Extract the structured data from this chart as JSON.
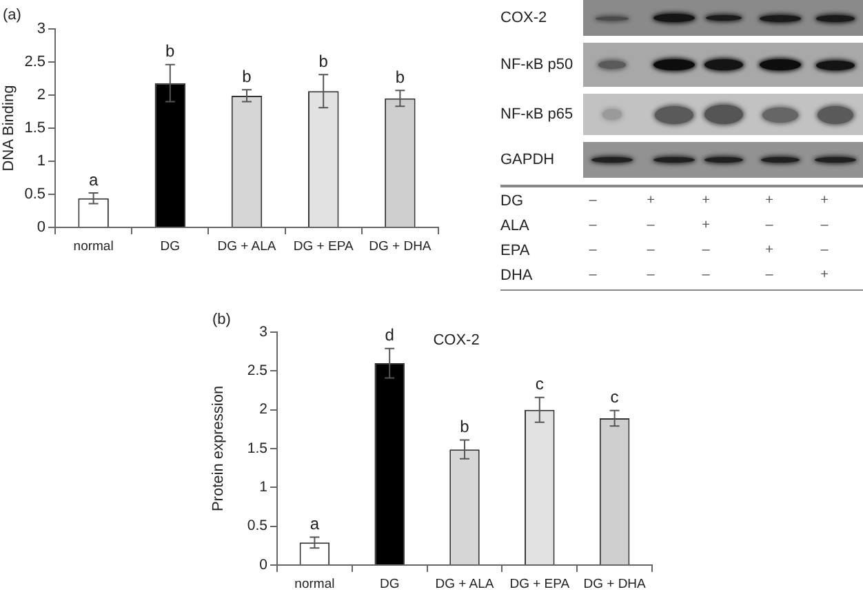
{
  "chart_data": [
    {
      "type": "bar",
      "categories": [
        "normal",
        "DG",
        "DG + ALA",
        "DG + EPA",
        "DG + DHA"
      ],
      "values": [
        0.44,
        2.18,
        1.99,
        2.06,
        1.95
      ],
      "errors": [
        0.08,
        0.28,
        0.09,
        0.25,
        0.12
      ],
      "colors": [
        "#ffffff",
        "#000000",
        "#d6d6d6",
        "#e2e2e2",
        "#cfcfcf"
      ],
      "ylabel": "DNA Binding",
      "ylim": [
        0,
        3
      ],
      "yticks": [
        0,
        0.5,
        1,
        1.5,
        2,
        2.5,
        3
      ],
      "annotations": [
        "(a)",
        {
          "text": "a",
          "x": "normal",
          "y": 0.52
        },
        {
          "text": "b",
          "x": "DG",
          "y": 2.46
        },
        {
          "text": "b",
          "x": "DG + ALA",
          "y": 2.08
        },
        {
          "text": "b",
          "x": "DG + EPA",
          "y": 2.31
        },
        {
          "text": "b",
          "x": "DG + DHA",
          "y": 2.07
        }
      ]
    },
    {
      "type": "other",
      "annotations": [
        "COX-2",
        "NF-κB p50",
        "NF-κB p65",
        "GAPDH"
      ],
      "categories": [
        null,
        null,
        null,
        null,
        null
      ],
      "y_categories": [
        "DG",
        "ALA",
        "EPA",
        "DHA"
      ],
      "cell_labels": [
        [
          "–",
          "+",
          "+",
          "+",
          "+"
        ],
        [
          "–",
          "–",
          "+",
          "–",
          "–"
        ],
        [
          "–",
          "–",
          "–",
          "+",
          "–"
        ],
        [
          "–",
          "–",
          "–",
          "–",
          "+"
        ]
      ]
    },
    {
      "type": "bar",
      "title": "COX-2",
      "categories": [
        "normal",
        "DG",
        "DG + ALA",
        "DG + EPA",
        "DG + DHA"
      ],
      "values": [
        0.29,
        2.6,
        1.49,
        2.0,
        1.89
      ],
      "errors": [
        0.07,
        0.19,
        0.12,
        0.16,
        0.1
      ],
      "colors": [
        "#ffffff",
        "#000000",
        "#d6d6d6",
        "#e2e2e2",
        "#cfcfcf"
      ],
      "ylabel": "Protein expression",
      "ylim": [
        0,
        3
      ],
      "yticks": [
        0,
        0.5,
        1,
        1.5,
        2,
        2.5,
        3
      ],
      "annotations": [
        "(b)",
        {
          "text": "a",
          "x": "normal",
          "y": 0.36
        },
        {
          "text": "d",
          "x": "DG",
          "y": 2.79
        },
        {
          "text": "b",
          "x": "DG + ALA",
          "y": 1.61
        },
        {
          "text": "c",
          "x": "DG + EPA",
          "y": 2.16
        },
        {
          "text": "c",
          "x": "DG + DHA",
          "y": 1.99
        }
      ]
    }
  ]
}
